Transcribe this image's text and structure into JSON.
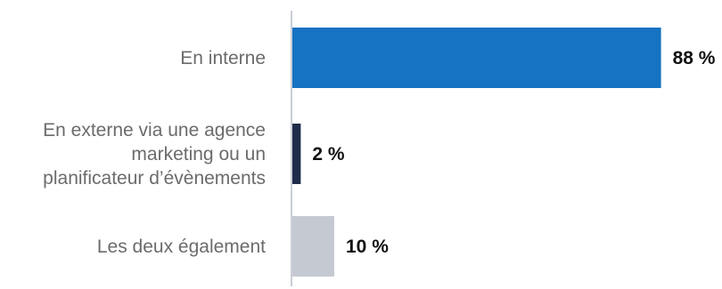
{
  "chart_data": {
    "type": "bar",
    "orientation": "horizontal",
    "categories": [
      [
        "En interne"
      ],
      [
        "En externe via une agence",
        "marketing ou un",
        "planificateur d’évènements"
      ],
      [
        "Les deux également"
      ]
    ],
    "values": [
      88,
      2,
      10
    ],
    "value_labels": [
      "88 %",
      "2 %",
      "10 %"
    ],
    "colors": [
      "#1672c2",
      "#1f2d4a",
      "#c5c9d2"
    ],
    "xlim": [
      0,
      100
    ],
    "title": "",
    "xlabel": "",
    "ylabel": "",
    "grid": false,
    "legend": "none"
  }
}
